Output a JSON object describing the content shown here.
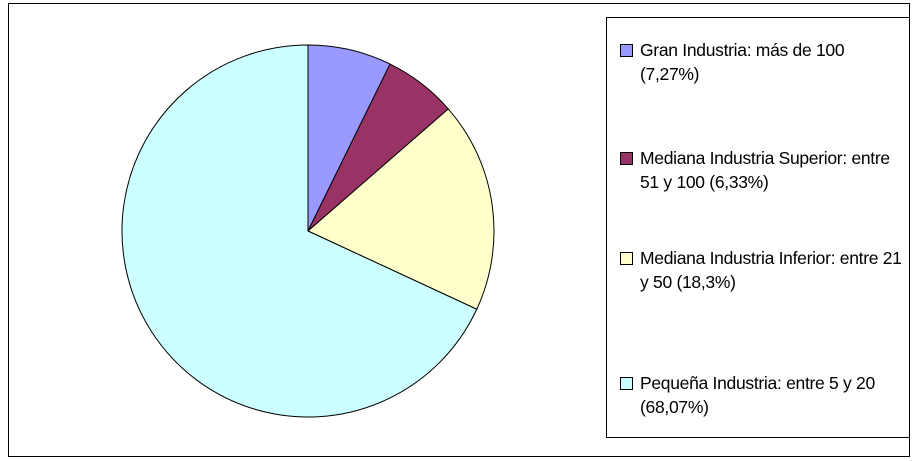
{
  "chart_data": {
    "type": "pie",
    "categories": [
      "Gran Industria: más de 100 (7,27%)",
      "Mediana Industria Superior: entre 51 y 100 (6,33%)",
      "Mediana Industria Inferior: entre 21 y 50 (18,3%)",
      "Pequeña Industria: entre 5 y 20 (68,07%)"
    ],
    "values": [
      7.27,
      6.33,
      18.3,
      68.07
    ],
    "colors": [
      "#9999ff",
      "#993366",
      "#ffffcc",
      "#ccffff"
    ],
    "legend": "right"
  }
}
